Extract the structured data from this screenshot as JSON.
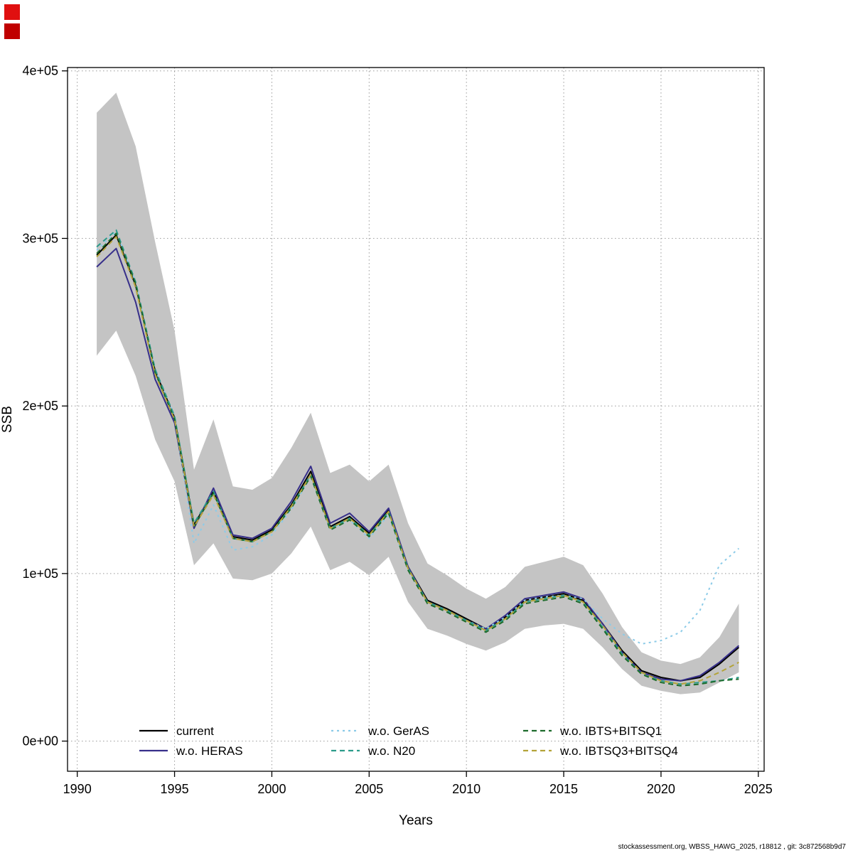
{
  "footer": {
    "text": "stockassessment.org, WBSS_HAWG_2025, r18812 , git: 3c872568b9d7"
  },
  "window_markers": {
    "top_color": "#e01010",
    "bottom_color": "#c00000"
  },
  "chart_data": {
    "type": "line",
    "title": "",
    "xlabel": "Years",
    "ylabel": "SSB",
    "xlim": [
      1989.5,
      2025.3
    ],
    "ylim": [
      -18000,
      402000
    ],
    "grid": true,
    "x_ticks": [
      1990,
      1995,
      2000,
      2005,
      2010,
      2015,
      2020,
      2025
    ],
    "y_ticks": [
      {
        "v": 0,
        "label": "0e+00"
      },
      {
        "v": 100000,
        "label": "1e+05"
      },
      {
        "v": 200000,
        "label": "2e+05"
      },
      {
        "v": 300000,
        "label": "3e+05"
      },
      {
        "v": 400000,
        "label": "4e+05"
      }
    ],
    "x": [
      1991,
      1992,
      1993,
      1994,
      1995,
      1996,
      1997,
      1998,
      1999,
      2000,
      2001,
      2002,
      2003,
      2004,
      2005,
      2006,
      2007,
      2008,
      2009,
      2010,
      2011,
      2012,
      2013,
      2014,
      2015,
      2016,
      2017,
      2018,
      2019,
      2020,
      2021,
      2022,
      2023,
      2024
    ],
    "band": {
      "color": "#c4c4c4",
      "lower": [
        230000,
        245000,
        218000,
        180000,
        155000,
        105000,
        118000,
        97000,
        96000,
        100000,
        112000,
        128000,
        102000,
        107000,
        99000,
        110000,
        83000,
        67000,
        63000,
        58000,
        54000,
        59000,
        67000,
        69000,
        70000,
        67000,
        56000,
        43000,
        33000,
        30000,
        28000,
        29000,
        35000,
        41000
      ],
      "upper": [
        375000,
        387000,
        355000,
        298000,
        245000,
        162000,
        192000,
        152000,
        150000,
        157000,
        175000,
        196000,
        160000,
        165000,
        155000,
        165000,
        130000,
        106000,
        99000,
        91000,
        85000,
        92000,
        104000,
        107000,
        110000,
        105000,
        88000,
        68000,
        53000,
        48000,
        46000,
        50000,
        62000,
        82000
      ]
    },
    "series": [
      {
        "name": "current",
        "color": "#000000",
        "dash": "",
        "width": 2,
        "values": [
          290000,
          302000,
          272000,
          221000,
          193000,
          129000,
          149000,
          122000,
          120000,
          126000,
          141000,
          161000,
          128000,
          134000,
          124000,
          138000,
          104000,
          84000,
          79000,
          73000,
          67000,
          74000,
          84000,
          86000,
          88000,
          84000,
          70000,
          54000,
          42000,
          38000,
          36000,
          38000,
          46000,
          56000
        ]
      },
      {
        "name": "w.o. HERAS",
        "color": "#372f8a",
        "dash": "",
        "width": 2,
        "values": [
          283000,
          294000,
          262000,
          216000,
          190000,
          127000,
          151000,
          123000,
          121000,
          127000,
          143000,
          164000,
          130000,
          136000,
          125000,
          139000,
          104000,
          83000,
          78000,
          72000,
          67000,
          75000,
          85000,
          87000,
          89000,
          85000,
          70000,
          53000,
          41000,
          37000,
          36000,
          39000,
          47000,
          57000
        ]
      },
      {
        "name": "w.o. GerAS",
        "color": "#8ccbe8",
        "dash": "3 5",
        "width": 2,
        "values": [
          293000,
          304000,
          274000,
          222000,
          194000,
          118000,
          141000,
          114000,
          116000,
          123000,
          138000,
          158000,
          126000,
          132000,
          121000,
          135000,
          102000,
          83000,
          78000,
          72000,
          67000,
          74000,
          84000,
          86000,
          87000,
          85000,
          73000,
          64000,
          58000,
          60000,
          65000,
          78000,
          105000,
          115000
        ]
      },
      {
        "name": "w.o. N20",
        "color": "#2b9b8a",
        "dash": "7 5",
        "width": 2,
        "values": [
          295000,
          305000,
          274000,
          222000,
          194000,
          130000,
          149000,
          121000,
          119000,
          125000,
          140000,
          159000,
          127000,
          133000,
          123000,
          137000,
          103000,
          83000,
          78000,
          72000,
          66000,
          73000,
          83000,
          85000,
          87000,
          83000,
          68000,
          52000,
          40000,
          36000,
          34000,
          35000,
          36000,
          38000
        ]
      },
      {
        "name": "w.o. IBTS+BITSQ1",
        "color": "#1d6b2c",
        "dash": "7 5",
        "width": 2,
        "values": [
          291000,
          303000,
          273000,
          220000,
          192000,
          128000,
          148000,
          121000,
          119000,
          125000,
          139000,
          158000,
          126000,
          132000,
          122000,
          136000,
          102000,
          82000,
          77000,
          71000,
          65000,
          72000,
          82000,
          84000,
          86000,
          82000,
          67000,
          51000,
          40000,
          35000,
          33000,
          34000,
          36000,
          37000
        ]
      },
      {
        "name": "w.o. IBTSQ3+BITSQ4",
        "color": "#b3a339",
        "dash": "7 5",
        "width": 2,
        "values": [
          289000,
          301000,
          271000,
          219000,
          192000,
          128000,
          147000,
          121000,
          119000,
          125000,
          140000,
          159000,
          127000,
          133000,
          123000,
          137000,
          103000,
          83000,
          78000,
          72000,
          66000,
          73000,
          83000,
          85000,
          87000,
          83000,
          69000,
          53000,
          41000,
          36000,
          34000,
          36000,
          41000,
          47000
        ]
      }
    ],
    "legend": {
      "position": "bottom-inside",
      "columns": [
        [
          "current",
          "w.o. HERAS"
        ],
        [
          "w.o. GerAS",
          "w.o. N20"
        ],
        [
          "w.o. IBTS+BITSQ1",
          "w.o. IBTSQ3+BITSQ4"
        ]
      ]
    }
  }
}
